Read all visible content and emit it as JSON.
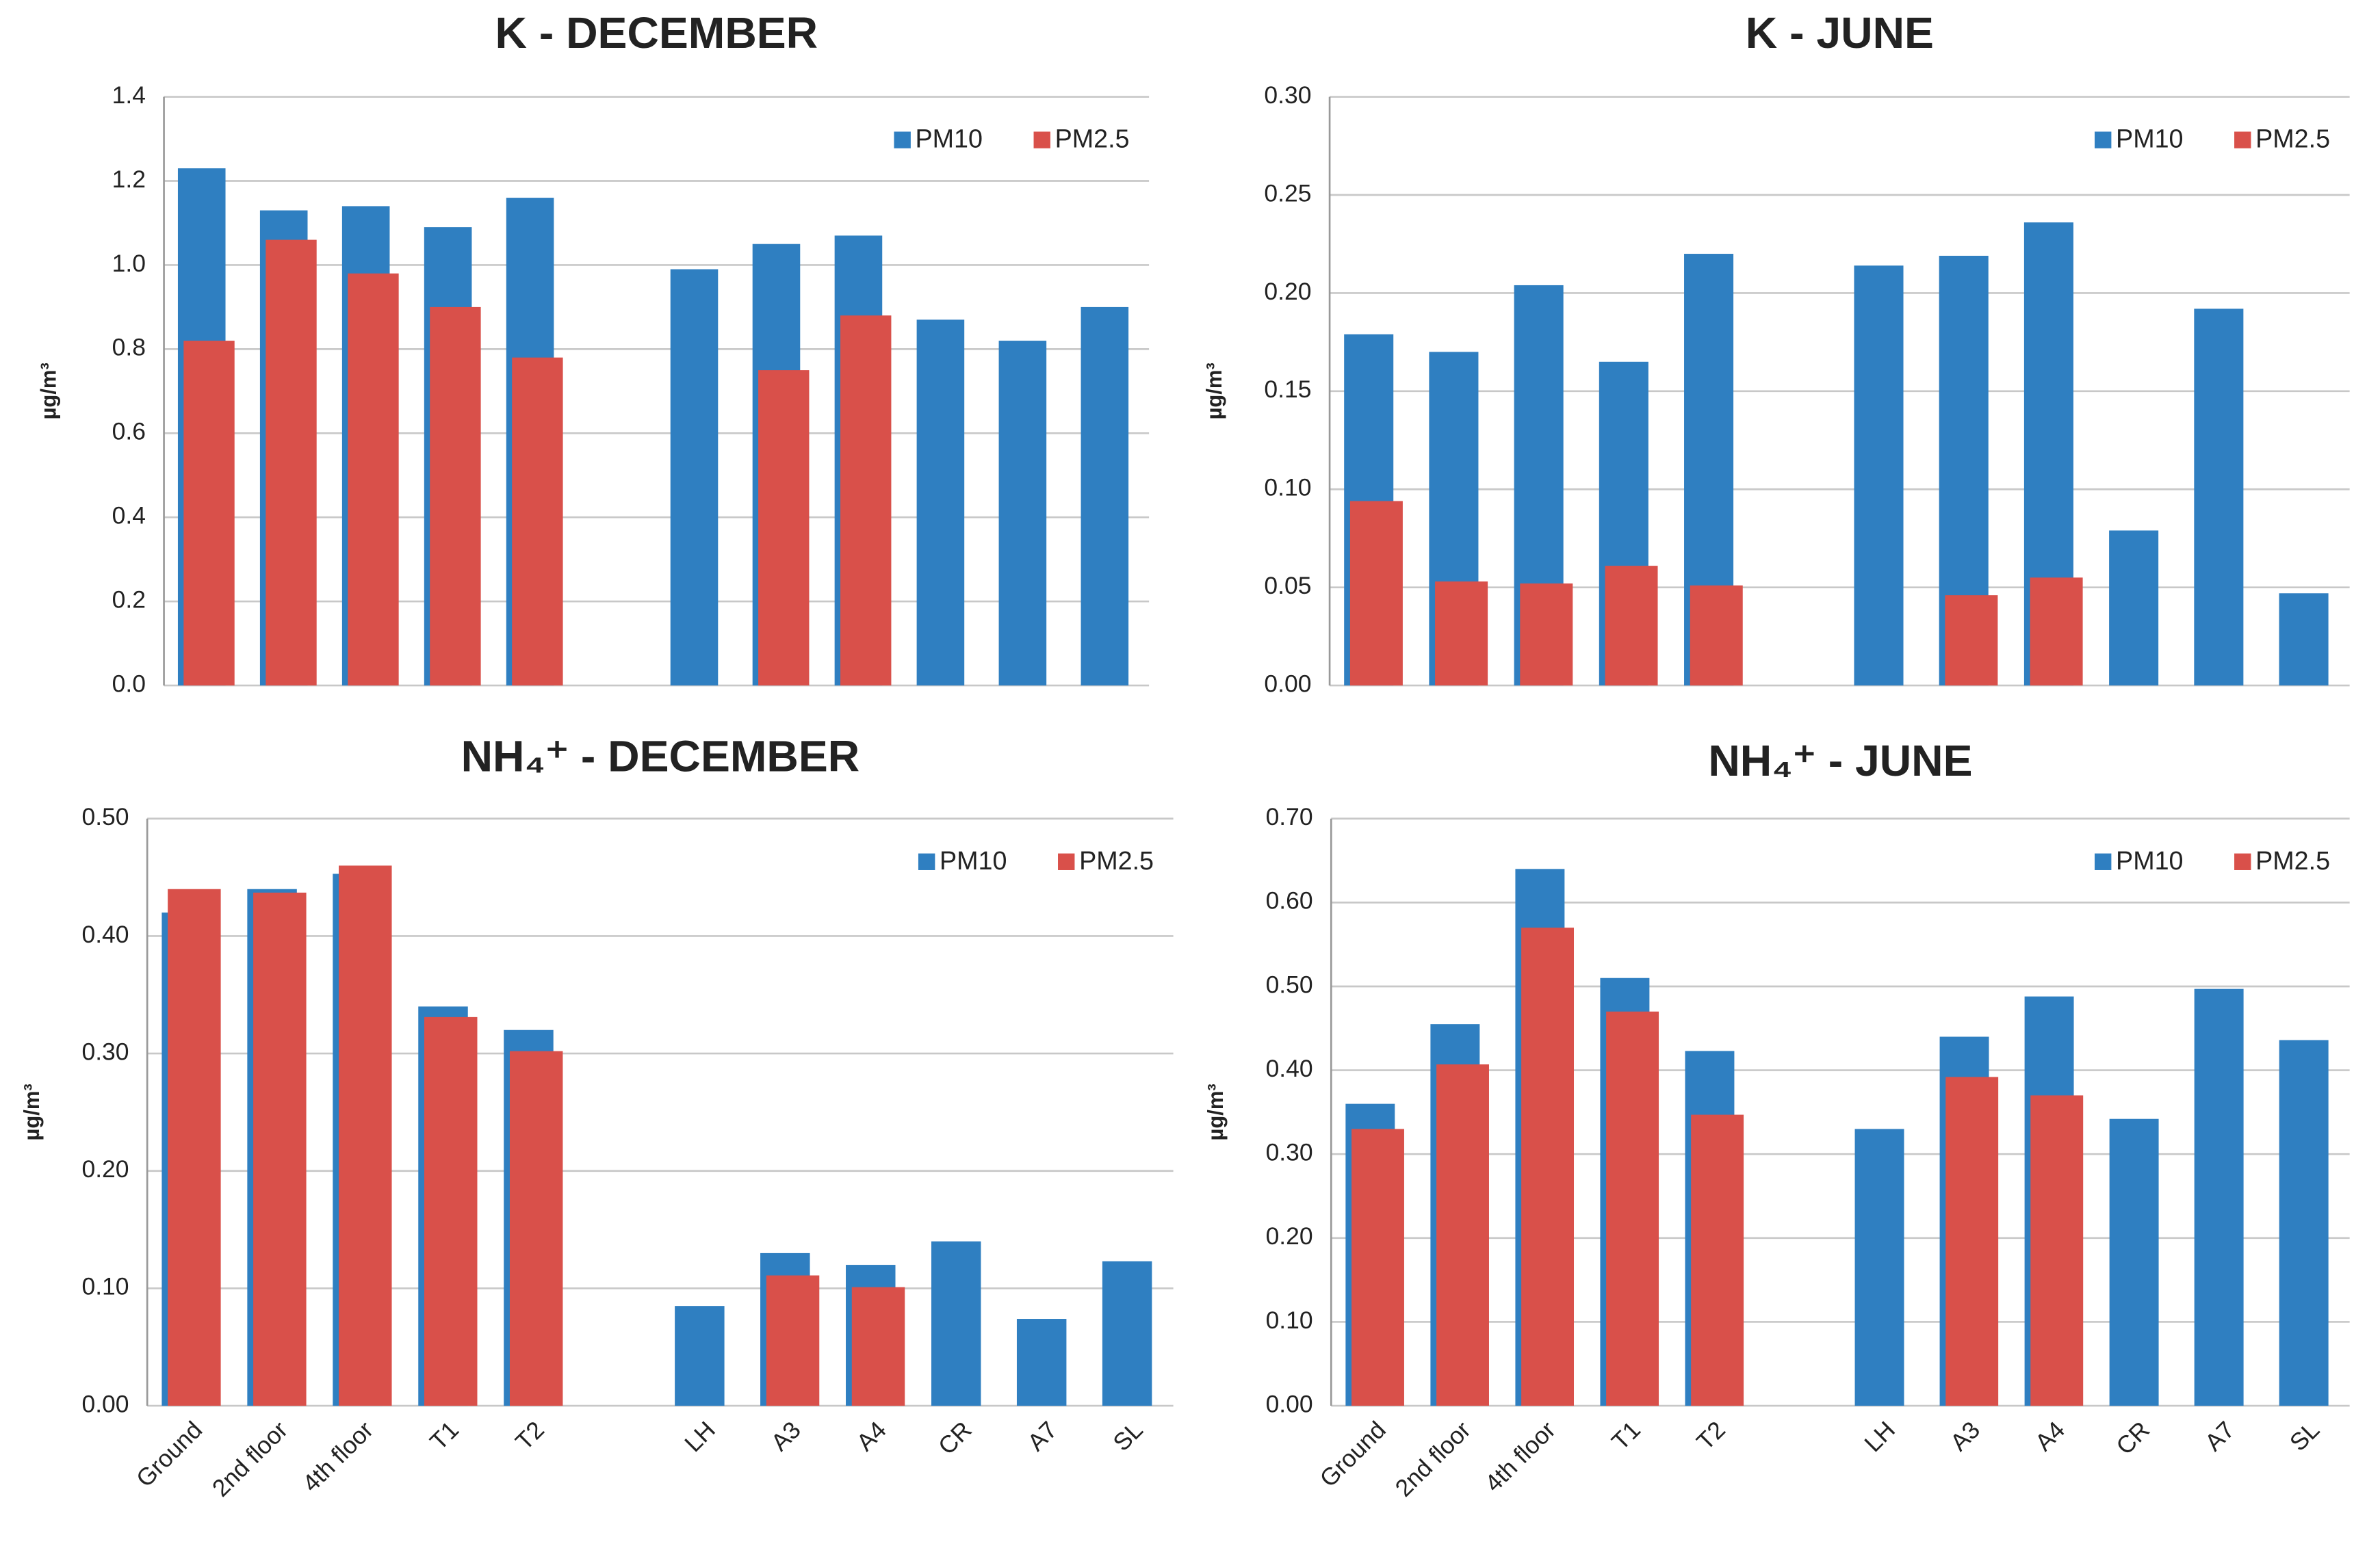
{
  "chart_data": [
    {
      "type": "bar",
      "title": "K - DECEMBER",
      "ylabel": "µg/m³",
      "ylim": [
        0,
        1.4
      ],
      "yticks": [
        {
          "value": 0,
          "label": "0.0"
        },
        0.2,
        0.4,
        0.6,
        0.8,
        {
          "value": 1,
          "label": "1.0"
        },
        1.2,
        1.4
      ],
      "grid": true,
      "legend": "top-right",
      "series": [
        {
          "name": "PM10",
          "color": "#2f7fc1",
          "values": [
            1.23,
            1.13,
            1.14,
            1.09,
            1.16,
            null,
            0.99,
            1.05,
            1.07,
            0.87,
            0.82,
            0.9
          ]
        },
        {
          "name": "PM2.5",
          "color": "#d9504a",
          "values": [
            0.82,
            1.06,
            0.98,
            0.9,
            0.78,
            null,
            null,
            0.75,
            0.88,
            null,
            null,
            null
          ]
        }
      ]
    },
    {
      "type": "bar",
      "title": "K - JUNE",
      "ylabel": "µg/m³",
      "ylim": [
        0,
        0.3
      ],
      "yticks": [
        {
          "value": 0,
          "label": "0.00"
        },
        0.05,
        {
          "value": 0.1,
          "label": "0.10"
        },
        0.15,
        {
          "value": 0.2,
          "label": "0.20"
        },
        0.25,
        {
          "value": 0.3,
          "label": "0.30"
        }
      ],
      "grid": true,
      "legend": "top-right",
      "series": [
        {
          "name": "PM10",
          "color": "#2f7fc1",
          "values": [
            0.179,
            0.17,
            0.204,
            0.165,
            0.22,
            null,
            0.214,
            0.219,
            0.236,
            0.079,
            0.192,
            0.047
          ]
        },
        {
          "name": "PM2.5",
          "color": "#d9504a",
          "values": [
            0.094,
            0.053,
            0.052,
            0.061,
            0.051,
            null,
            null,
            0.046,
            0.055,
            null,
            null,
            null
          ]
        }
      ]
    },
    {
      "type": "bar",
      "title": "NH₄⁺ - DECEMBER",
      "ylabel": "µg/m³",
      "categories": [
        "Ground",
        "2nd floor",
        "4th floor",
        "T1",
        "T2",
        null,
        "LH",
        "A3",
        "A4",
        "CR",
        "A7",
        "SL"
      ],
      "ylim": [
        0,
        0.5
      ],
      "yticks": [
        {
          "value": 0,
          "label": "0.00"
        },
        {
          "value": 0.1,
          "label": "0.10"
        },
        {
          "value": 0.2,
          "label": "0.20"
        },
        {
          "value": 0.3,
          "label": "0.30"
        },
        {
          "value": 0.4,
          "label": "0.40"
        },
        {
          "value": 0.5,
          "label": "0.50"
        }
      ],
      "grid": true,
      "legend": "top-right",
      "series": [
        {
          "name": "PM10",
          "color": "#2f7fc1",
          "values": [
            0.42,
            0.44,
            0.453,
            0.34,
            0.32,
            null,
            0.085,
            0.13,
            0.12,
            0.14,
            0.074,
            0.123
          ]
        },
        {
          "name": "PM2.5",
          "color": "#d9504a",
          "values": [
            0.44,
            0.437,
            0.46,
            0.331,
            0.302,
            null,
            null,
            0.111,
            0.101,
            null,
            null,
            null
          ]
        }
      ]
    },
    {
      "type": "bar",
      "title": "NH₄⁺ - JUNE",
      "ylabel": "µg/m³",
      "categories": [
        "Ground",
        "2nd floor",
        "4th floor",
        "T1",
        "T2",
        null,
        "LH",
        "A3",
        "A4",
        "CR",
        "A7",
        "SL"
      ],
      "ylim": [
        0,
        0.7
      ],
      "yticks": [
        {
          "value": 0,
          "label": "0.00"
        },
        {
          "value": 0.1,
          "label": "0.10"
        },
        {
          "value": 0.2,
          "label": "0.20"
        },
        {
          "value": 0.3,
          "label": "0.30"
        },
        {
          "value": 0.4,
          "label": "0.40"
        },
        {
          "value": 0.5,
          "label": "0.50"
        },
        {
          "value": 0.6,
          "label": "0.60"
        },
        {
          "value": 0.7,
          "label": "0.70"
        }
      ],
      "grid": true,
      "legend": "top-right",
      "series": [
        {
          "name": "PM10",
          "color": "#2f7fc1",
          "values": [
            0.36,
            0.455,
            0.64,
            0.51,
            0.423,
            null,
            0.33,
            0.44,
            0.488,
            0.342,
            0.497,
            0.436
          ]
        },
        {
          "name": "PM2.5",
          "color": "#d9504a",
          "values": [
            0.33,
            0.407,
            0.57,
            0.47,
            0.347,
            null,
            null,
            0.392,
            0.37,
            null,
            null,
            null
          ]
        }
      ]
    }
  ]
}
